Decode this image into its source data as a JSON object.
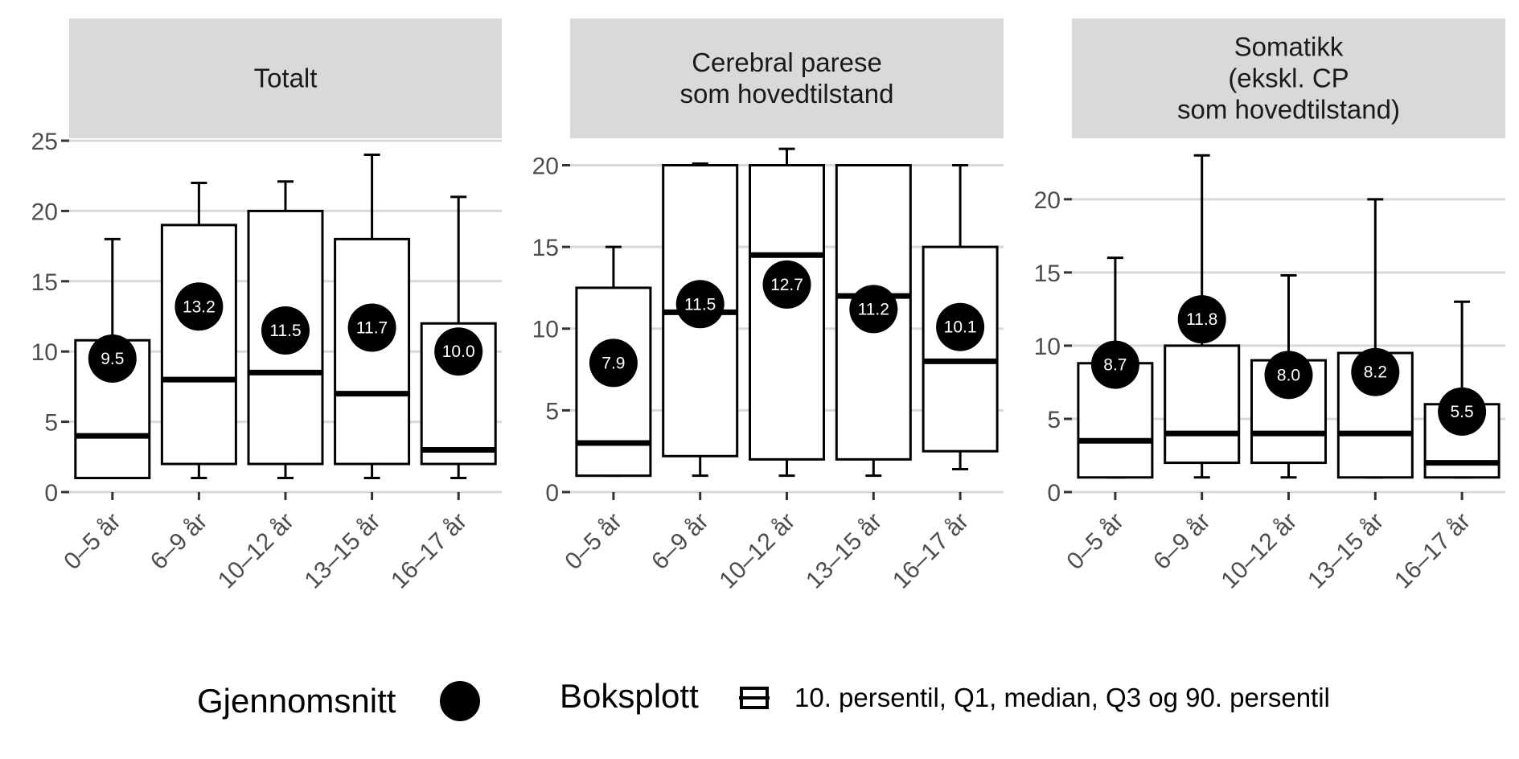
{
  "chart_data": {
    "type": "boxplot",
    "categories": [
      "0–5 år",
      "6–9 år",
      "10–12 år",
      "13–15 år",
      "16–17 år"
    ],
    "colors": {
      "strip": "#d9d9d9",
      "grid": "#d9d9d9",
      "box": "#000000",
      "mean": "#000000",
      "mean_text": "#ffffff"
    },
    "panels": [
      {
        "title": [
          "Totalt"
        ],
        "ylim": [
          0,
          25
        ],
        "yticks": [
          0,
          5,
          10,
          15,
          20,
          25
        ],
        "boxes": [
          {
            "p10": 1,
            "q1": 1,
            "median": 4,
            "q3": 10.8,
            "p90": 18,
            "mean": 9.5,
            "mean_label": "9.5"
          },
          {
            "p10": 1,
            "q1": 2,
            "median": 8,
            "q3": 19,
            "p90": 22,
            "mean": 13.2,
            "mean_label": "13.2"
          },
          {
            "p10": 1,
            "q1": 2,
            "median": 8.5,
            "q3": 20,
            "p90": 22.1,
            "mean": 11.5,
            "mean_label": "11.5"
          },
          {
            "p10": 1,
            "q1": 2,
            "median": 7,
            "q3": 18,
            "p90": 24,
            "mean": 11.7,
            "mean_label": "11.7"
          },
          {
            "p10": 1,
            "q1": 2,
            "median": 3,
            "q3": 12,
            "p90": 21,
            "mean": 10.0,
            "mean_label": "10.0"
          }
        ]
      },
      {
        "title": [
          "Cerebral parese",
          "som hovedtilstand"
        ],
        "ylim": [
          0,
          21.5
        ],
        "yticks": [
          0,
          5,
          10,
          15,
          20
        ],
        "boxes": [
          {
            "p10": 1,
            "q1": 1,
            "median": 3,
            "q3": 12.5,
            "p90": 15,
            "mean": 7.9,
            "mean_label": "7.9"
          },
          {
            "p10": 1,
            "q1": 2.2,
            "median": 11,
            "q3": 20,
            "p90": 20.1,
            "mean": 11.5,
            "mean_label": "11.5"
          },
          {
            "p10": 1,
            "q1": 2,
            "median": 14.5,
            "q3": 20,
            "p90": 21,
            "mean": 12.7,
            "mean_label": "12.7"
          },
          {
            "p10": 1,
            "q1": 2,
            "median": 12,
            "q3": 20,
            "p90": 20,
            "mean": 11.2,
            "mean_label": "11.2"
          },
          {
            "p10": 1.4,
            "q1": 2.5,
            "median": 8,
            "q3": 15,
            "p90": 20,
            "mean": 10.1,
            "mean_label": "10.1"
          }
        ]
      },
      {
        "title": [
          "Somatikk",
          "(ekskl. CP",
          "som hovedtilstand)"
        ],
        "ylim": [
          0,
          24
        ],
        "yticks": [
          0,
          5,
          10,
          15,
          20
        ],
        "boxes": [
          {
            "p10": 1,
            "q1": 1,
            "median": 3.5,
            "q3": 8.8,
            "p90": 16,
            "mean": 8.7,
            "mean_label": "8.7"
          },
          {
            "p10": 1,
            "q1": 2,
            "median": 4,
            "q3": 10,
            "p90": 23,
            "mean": 11.8,
            "mean_label": "11.8"
          },
          {
            "p10": 1,
            "q1": 2,
            "median": 4,
            "q3": 9,
            "p90": 14.8,
            "mean": 8.0,
            "mean_label": "8.0"
          },
          {
            "p10": 1,
            "q1": 1,
            "median": 4,
            "q3": 9.5,
            "p90": 20,
            "mean": 8.2,
            "mean_label": "8.2"
          },
          {
            "p10": 1,
            "q1": 1,
            "median": 2,
            "q3": 6,
            "p90": 13,
            "mean": 5.5,
            "mean_label": "5.5"
          }
        ]
      }
    ],
    "legend": {
      "mean_title": "Gjennomsnitt",
      "box_title": "Boksplott",
      "box_text": "10. persentil, Q1, median, Q3 og 90. persentil"
    }
  }
}
